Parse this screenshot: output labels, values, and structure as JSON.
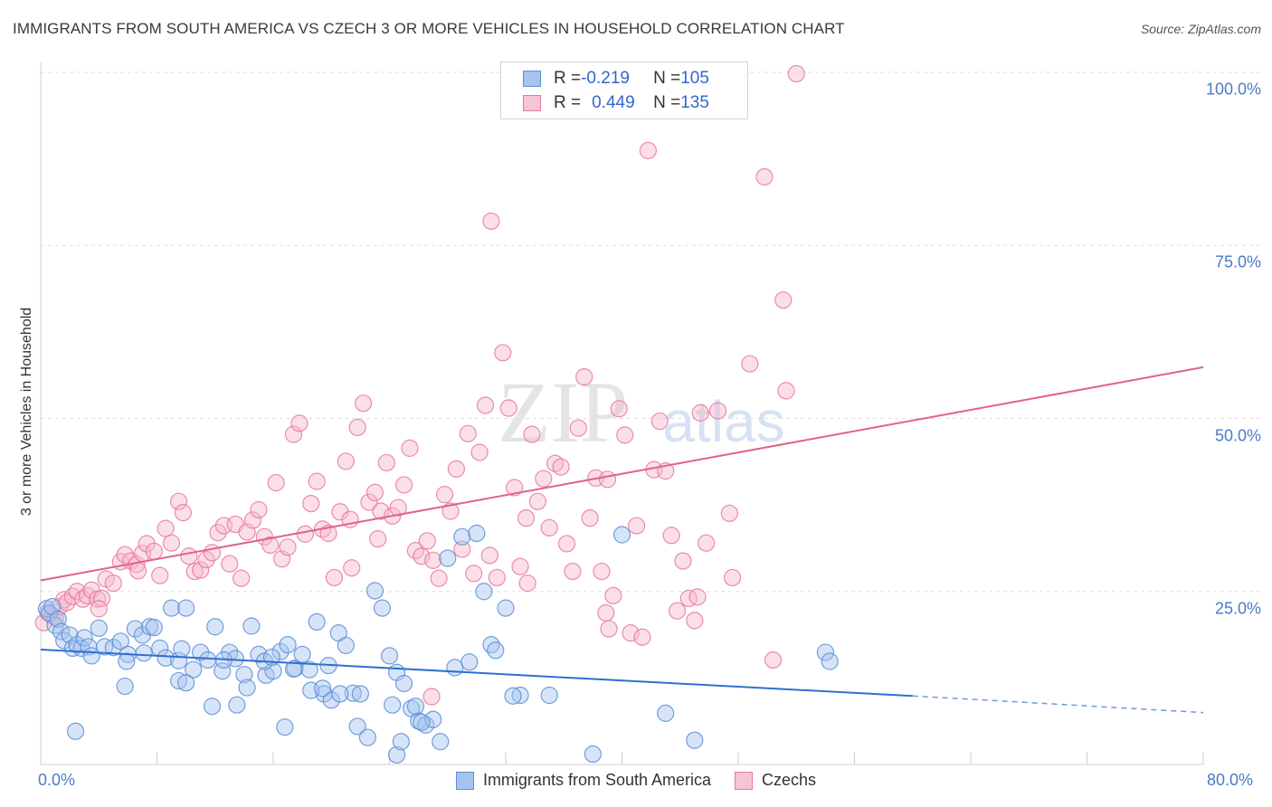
{
  "header": {
    "title": "IMMIGRANTS FROM SOUTH AMERICA VS CZECH 3 OR MORE VEHICLES IN HOUSEHOLD CORRELATION CHART",
    "source": "Source: ZipAtlas.com"
  },
  "legend_top": {
    "rows": [
      {
        "r_label": "R = ",
        "r_value": "-0.219",
        "n_label": "N = ",
        "n_value": "105"
      },
      {
        "r_label": "R = ",
        "r_value": "0.449",
        "n_label": "N = ",
        "n_value": "135"
      }
    ]
  },
  "watermark": {
    "zip": "ZIP",
    "atlas": "atlas"
  },
  "colors": {
    "blue_fill": "#a7c4ef",
    "blue_stroke": "#5b8fd6",
    "blue_line": "#2f6fcf",
    "pink_fill": "#f6b8cb",
    "pink_stroke": "#e8799c",
    "pink_line": "#e0628d",
    "axis_text": "#4a7bc6",
    "grid": "#dedede"
  },
  "chart_data": {
    "type": "scatter",
    "title": "IMMIGRANTS FROM SOUTH AMERICA VS CZECH 3 OR MORE VEHICLES IN HOUSEHOLD CORRELATION CHART",
    "xlabel": "",
    "ylabel": "3 or more Vehicles in Household",
    "xlim": [
      0,
      80
    ],
    "ylim": [
      0,
      100
    ],
    "x_ticks": [
      "0.0%",
      "80.0%"
    ],
    "y_ticks": [
      "25.0%",
      "50.0%",
      "75.0%",
      "100.0%"
    ],
    "y_tick_values": [
      25,
      50,
      75,
      100
    ],
    "grid": true,
    "legend_position": "top-center",
    "series": [
      {
        "name": "Immigrants from South America",
        "R": -0.219,
        "N": 105,
        "trend": {
          "x": [
            0,
            60
          ],
          "y": [
            16.6,
            9.9
          ],
          "dashed_to": [
            80,
            7.5
          ]
        },
        "points": [
          [
            0.4,
            22.5
          ],
          [
            0.6,
            21.8
          ],
          [
            0.8,
            22.8
          ],
          [
            1.0,
            20.1
          ],
          [
            1.2,
            21.0
          ],
          [
            1.4,
            19.2
          ],
          [
            1.6,
            17.9
          ],
          [
            2.0,
            18.7
          ],
          [
            2.2,
            16.8
          ],
          [
            2.5,
            17.3
          ],
          [
            2.8,
            16.8
          ],
          [
            3.0,
            18.3
          ],
          [
            3.3,
            17.0
          ],
          [
            3.5,
            15.7
          ],
          [
            4.0,
            19.7
          ],
          [
            4.4,
            17.0
          ],
          [
            5.0,
            16.9
          ],
          [
            5.5,
            17.8
          ],
          [
            6.0,
            15.9
          ],
          [
            6.5,
            19.6
          ],
          [
            7.0,
            18.7
          ],
          [
            7.5,
            19.9
          ],
          [
            7.8,
            19.8
          ],
          [
            8.2,
            16.8
          ],
          [
            8.6,
            15.4
          ],
          [
            9.0,
            22.6
          ],
          [
            9.5,
            15.0
          ],
          [
            10.0,
            22.6
          ],
          [
            10.5,
            13.7
          ],
          [
            11.0,
            16.2
          ],
          [
            11.5,
            15.1
          ],
          [
            12.0,
            19.9
          ],
          [
            12.5,
            13.5
          ],
          [
            13.0,
            16.2
          ],
          [
            13.4,
            15.3
          ],
          [
            14.0,
            13.0
          ],
          [
            14.5,
            20.0
          ],
          [
            15.0,
            15.9
          ],
          [
            15.5,
            12.9
          ],
          [
            16.0,
            13.5
          ],
          [
            16.5,
            16.3
          ],
          [
            17.0,
            17.3
          ],
          [
            17.5,
            13.9
          ],
          [
            18.0,
            15.9
          ],
          [
            18.5,
            13.7
          ],
          [
            19.0,
            20.6
          ],
          [
            19.5,
            10.2
          ],
          [
            20.0,
            9.3
          ],
          [
            20.5,
            19.0
          ],
          [
            21.0,
            17.2
          ],
          [
            21.5,
            10.3
          ],
          [
            22.0,
            10.2
          ],
          [
            23.0,
            25.1
          ],
          [
            23.5,
            22.6
          ],
          [
            24.0,
            15.7
          ],
          [
            24.5,
            13.3
          ],
          [
            25.0,
            11.7
          ],
          [
            25.5,
            8.1
          ],
          [
            26.0,
            6.3
          ],
          [
            26.5,
            5.7
          ],
          [
            27.0,
            6.5
          ],
          [
            28.0,
            29.8
          ],
          [
            28.5,
            14.0
          ],
          [
            29.0,
            32.9
          ],
          [
            29.5,
            14.8
          ],
          [
            30.0,
            33.4
          ],
          [
            31.0,
            17.3
          ],
          [
            31.3,
            16.5
          ],
          [
            32.0,
            22.6
          ],
          [
            33.0,
            10.0
          ],
          [
            35.0,
            10.0
          ],
          [
            38.0,
            1.5
          ],
          [
            40.0,
            33.2
          ],
          [
            43.0,
            7.4
          ],
          [
            45.0,
            3.5
          ],
          [
            54.0,
            16.2
          ],
          [
            54.3,
            14.9
          ],
          [
            2.4,
            4.8
          ],
          [
            5.8,
            11.3
          ],
          [
            9.5,
            12.1
          ],
          [
            10.0,
            11.8
          ],
          [
            11.8,
            8.4
          ],
          [
            13.5,
            8.6
          ],
          [
            14.2,
            11.1
          ],
          [
            15.4,
            14.9
          ],
          [
            16.8,
            5.4
          ],
          [
            18.6,
            10.7
          ],
          [
            19.4,
            11.0
          ],
          [
            20.6,
            10.2
          ],
          [
            21.8,
            5.5
          ],
          [
            22.5,
            3.9
          ],
          [
            24.2,
            8.6
          ],
          [
            24.5,
            1.4
          ],
          [
            24.8,
            3.3
          ],
          [
            25.8,
            8.4
          ],
          [
            26.2,
            6.1
          ],
          [
            27.5,
            3.3
          ],
          [
            30.5,
            25.0
          ],
          [
            32.5,
            9.9
          ],
          [
            17.4,
            13.8
          ],
          [
            19.8,
            14.3
          ],
          [
            12.6,
            15.1
          ],
          [
            7.1,
            16.1
          ],
          [
            5.9,
            14.9
          ],
          [
            15.9,
            15.5
          ],
          [
            9.7,
            16.7
          ]
        ]
      },
      {
        "name": "Czechs",
        "R": 0.449,
        "N": 135,
        "trend": {
          "x": [
            0,
            80
          ],
          "y": [
            26.6,
            57.4
          ]
        },
        "points": [
          [
            0.2,
            20.5
          ],
          [
            0.5,
            22.0
          ],
          [
            0.8,
            21.5
          ],
          [
            1.0,
            21.2
          ],
          [
            1.3,
            22.8
          ],
          [
            1.6,
            23.8
          ],
          [
            1.8,
            23.4
          ],
          [
            2.2,
            24.3
          ],
          [
            2.5,
            25.0
          ],
          [
            2.9,
            23.9
          ],
          [
            3.2,
            24.4
          ],
          [
            3.5,
            25.2
          ],
          [
            3.9,
            23.9
          ],
          [
            4.2,
            24.0
          ],
          [
            4.5,
            26.8
          ],
          [
            5.0,
            26.2
          ],
          [
            5.5,
            29.3
          ],
          [
            5.8,
            30.3
          ],
          [
            6.2,
            29.4
          ],
          [
            6.6,
            28.9
          ],
          [
            7.0,
            30.5
          ],
          [
            7.3,
            31.9
          ],
          [
            7.8,
            30.8
          ],
          [
            8.2,
            27.3
          ],
          [
            8.6,
            34.1
          ],
          [
            9.0,
            32.0
          ],
          [
            9.5,
            38.0
          ],
          [
            9.8,
            36.4
          ],
          [
            10.2,
            30.1
          ],
          [
            10.6,
            27.9
          ],
          [
            11.0,
            28.1
          ],
          [
            11.4,
            29.6
          ],
          [
            11.8,
            30.6
          ],
          [
            12.2,
            33.5
          ],
          [
            12.6,
            34.5
          ],
          [
            13.0,
            29.0
          ],
          [
            13.4,
            34.7
          ],
          [
            13.8,
            26.9
          ],
          [
            14.2,
            33.6
          ],
          [
            14.6,
            35.3
          ],
          [
            15.0,
            36.8
          ],
          [
            15.4,
            32.9
          ],
          [
            15.8,
            31.7
          ],
          [
            16.2,
            40.7
          ],
          [
            16.6,
            29.7
          ],
          [
            17.0,
            31.4
          ],
          [
            17.4,
            47.7
          ],
          [
            17.8,
            49.3
          ],
          [
            18.2,
            33.3
          ],
          [
            18.6,
            37.7
          ],
          [
            19.0,
            40.9
          ],
          [
            19.4,
            34.0
          ],
          [
            19.8,
            33.4
          ],
          [
            20.2,
            27.0
          ],
          [
            20.6,
            36.5
          ],
          [
            21.0,
            43.8
          ],
          [
            21.4,
            28.4
          ],
          [
            21.8,
            48.7
          ],
          [
            22.2,
            52.2
          ],
          [
            22.6,
            37.9
          ],
          [
            23.0,
            39.3
          ],
          [
            23.4,
            36.6
          ],
          [
            23.8,
            43.6
          ],
          [
            24.2,
            35.9
          ],
          [
            24.6,
            37.1
          ],
          [
            25.0,
            40.4
          ],
          [
            25.4,
            45.7
          ],
          [
            25.8,
            30.9
          ],
          [
            26.2,
            30.1
          ],
          [
            26.6,
            32.3
          ],
          [
            27.0,
            29.5
          ],
          [
            27.4,
            26.9
          ],
          [
            27.8,
            39.0
          ],
          [
            28.2,
            36.6
          ],
          [
            28.6,
            42.7
          ],
          [
            29.0,
            31.1
          ],
          [
            29.4,
            47.8
          ],
          [
            29.8,
            27.6
          ],
          [
            30.2,
            45.1
          ],
          [
            30.6,
            51.9
          ],
          [
            31.0,
            78.5
          ],
          [
            31.4,
            27.0
          ],
          [
            31.8,
            59.5
          ],
          [
            32.2,
            51.5
          ],
          [
            32.6,
            40.0
          ],
          [
            33.0,
            28.6
          ],
          [
            33.4,
            35.6
          ],
          [
            33.8,
            47.7
          ],
          [
            34.2,
            38.0
          ],
          [
            34.6,
            41.3
          ],
          [
            35.0,
            34.2
          ],
          [
            35.4,
            43.5
          ],
          [
            35.8,
            43.0
          ],
          [
            36.2,
            31.9
          ],
          [
            36.6,
            27.9
          ],
          [
            37.0,
            48.6
          ],
          [
            37.4,
            56.0
          ],
          [
            37.8,
            35.6
          ],
          [
            38.2,
            41.4
          ],
          [
            38.6,
            27.9
          ],
          [
            39.0,
            41.2
          ],
          [
            39.4,
            24.4
          ],
          [
            39.8,
            51.4
          ],
          [
            40.2,
            47.6
          ],
          [
            40.6,
            19.0
          ],
          [
            41.0,
            34.5
          ],
          [
            41.4,
            18.4
          ],
          [
            41.8,
            88.7
          ],
          [
            42.2,
            42.6
          ],
          [
            42.6,
            49.6
          ],
          [
            43.0,
            42.4
          ],
          [
            43.4,
            33.1
          ],
          [
            43.8,
            22.2
          ],
          [
            44.2,
            29.4
          ],
          [
            44.6,
            24.0
          ],
          [
            45.0,
            20.8
          ],
          [
            45.4,
            50.8
          ],
          [
            45.8,
            32.0
          ],
          [
            46.6,
            51.1
          ],
          [
            47.6,
            27.0
          ],
          [
            48.8,
            57.9
          ],
          [
            49.8,
            84.9
          ],
          [
            50.4,
            15.1
          ],
          [
            51.1,
            67.1
          ],
          [
            51.3,
            54.0
          ],
          [
            52.0,
            99.8
          ],
          [
            21.3,
            35.4
          ],
          [
            23.2,
            32.6
          ],
          [
            26.9,
            9.8
          ],
          [
            30.9,
            30.2
          ],
          [
            33.5,
            26.2
          ],
          [
            38.9,
            21.9
          ],
          [
            39.1,
            19.6
          ],
          [
            45.2,
            24.2
          ],
          [
            47.4,
            36.3
          ],
          [
            4.0,
            22.5
          ],
          [
            6.7,
            28.0
          ]
        ]
      }
    ]
  },
  "bottom_legend": {
    "items": [
      {
        "label": "Immigrants from South America"
      },
      {
        "label": "Czechs"
      }
    ]
  }
}
